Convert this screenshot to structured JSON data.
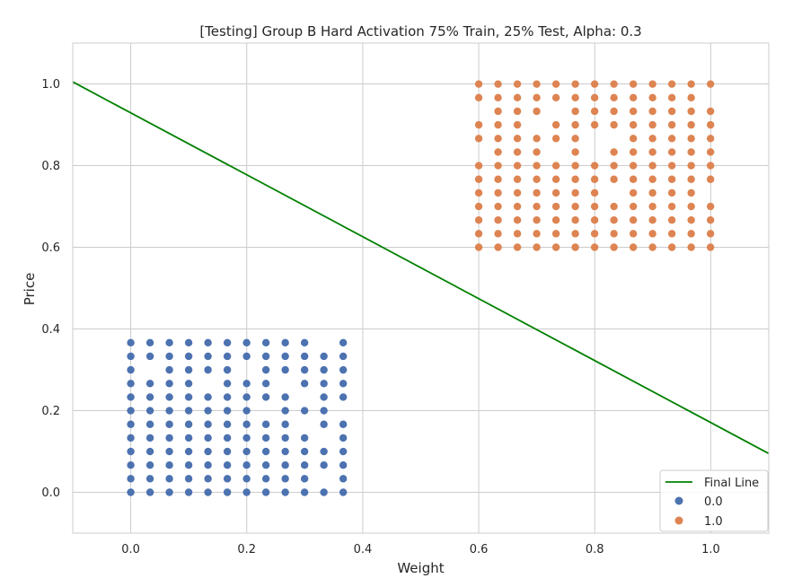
{
  "chart_data": {
    "type": "scatter",
    "title": "[Testing] Group B Hard Activation 75% Train, 25% Test, Alpha: 0.3",
    "xlabel": "Weight",
    "ylabel": "Price",
    "xlim": [
      -0.1,
      1.1
    ],
    "ylim": [
      -0.1,
      1.1
    ],
    "xticks": [
      "0.0",
      "0.2",
      "0.4",
      "0.6",
      "0.8",
      "1.0"
    ],
    "yticks": [
      "0.0",
      "0.2",
      "0.4",
      "0.6",
      "0.8",
      "1.0"
    ],
    "grid": true,
    "legend_position": "bottom-right",
    "line": {
      "name": "Final Line",
      "color": "#008000",
      "points": [
        [
          -0.1,
          1.005
        ],
        [
          1.1,
          0.095
        ]
      ]
    },
    "series": [
      {
        "name": "0.0",
        "color": "#4c72b0",
        "grid_x": {
          "start": 0.0,
          "step": 0.0333,
          "count": 12
        },
        "grid_y": {
          "start": 0.0,
          "step": 0.0333,
          "count": 12
        },
        "coverage": "most points of the grid present (75% train / 25% test sample)"
      },
      {
        "name": "1.0",
        "color": "#dd8452",
        "grid_x": {
          "start": 0.6,
          "step": 0.0333,
          "count": 13
        },
        "grid_y": {
          "start": 0.6,
          "step": 0.0333,
          "count": 13
        },
        "coverage": "most points of the grid present (75% train / 25% test sample)"
      }
    ]
  }
}
